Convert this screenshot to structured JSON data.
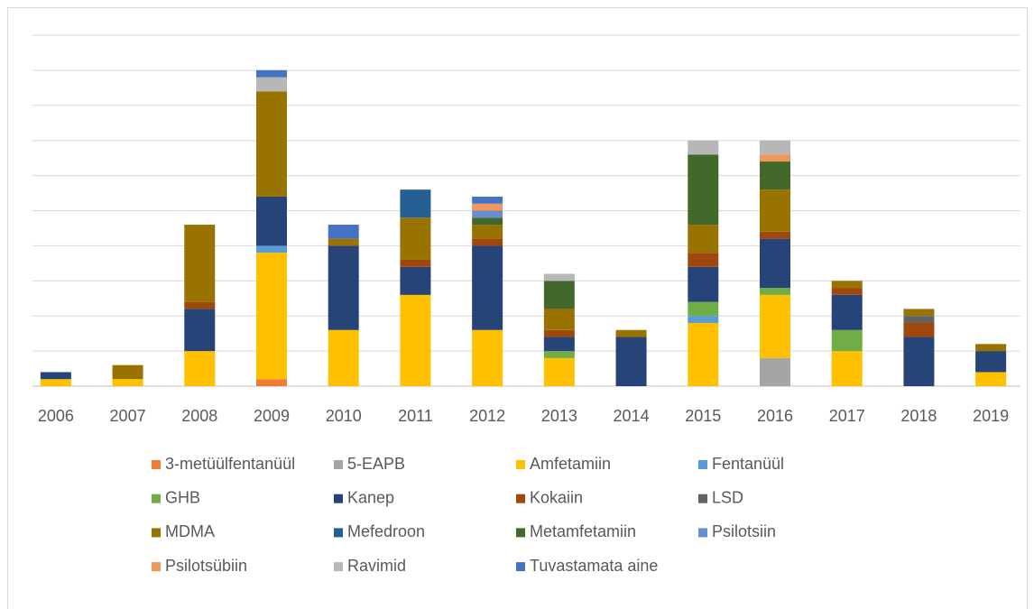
{
  "chart_data": {
    "type": "bar",
    "stacked": true,
    "grid": true,
    "categories": [
      "2006",
      "2007",
      "2008",
      "2009",
      "2010",
      "2011",
      "2012",
      "2013",
      "2014",
      "2015",
      "2016",
      "2017",
      "2018",
      "2019"
    ],
    "ylim": [
      0,
      50
    ],
    "yticks": [
      0,
      5,
      10,
      15,
      20,
      25,
      30,
      35,
      40,
      45,
      50
    ],
    "legend": "bottom",
    "series": [
      {
        "name": "3-metüülfentanüül",
        "color": "#ED7D31",
        "values": [
          0,
          0,
          0,
          1,
          0,
          0,
          0,
          0,
          0,
          0,
          0,
          0,
          0,
          0
        ]
      },
      {
        "name": "5-EAPB",
        "color": "#A5A5A5",
        "values": [
          0,
          0,
          0,
          0,
          0,
          0,
          0,
          0,
          0,
          0,
          4,
          0,
          0,
          0
        ]
      },
      {
        "name": "Amfetamiin",
        "color": "#FFC000",
        "values": [
          1,
          1,
          5,
          18,
          8,
          13,
          8,
          4,
          0,
          9,
          9,
          5,
          0,
          2
        ]
      },
      {
        "name": "Fentanüül",
        "color": "#5B9BD5",
        "values": [
          0,
          0,
          0,
          1,
          0,
          0,
          0,
          0,
          0,
          1,
          0,
          0,
          0,
          0
        ]
      },
      {
        "name": "GHB",
        "color": "#70AD47",
        "values": [
          0,
          0,
          0,
          0,
          0,
          0,
          0,
          1,
          0,
          2,
          1,
          3,
          0,
          0
        ]
      },
      {
        "name": "Kanep",
        "color": "#264478",
        "values": [
          1,
          0,
          6,
          7,
          12,
          4,
          12,
          2,
          7,
          5,
          7,
          5,
          7,
          3
        ]
      },
      {
        "name": "Kokaiin",
        "color": "#9E480E",
        "values": [
          0,
          0,
          1,
          0,
          0,
          1,
          1,
          1,
          0,
          2,
          1,
          1,
          2,
          0
        ]
      },
      {
        "name": "LSD",
        "color": "#636363",
        "values": [
          0,
          0,
          0,
          0,
          0,
          0,
          0,
          0,
          0,
          0,
          0,
          0,
          1,
          0
        ]
      },
      {
        "name": "MDMA",
        "color": "#997300",
        "values": [
          0,
          2,
          11,
          15,
          1,
          6,
          2,
          3,
          1,
          4,
          6,
          1,
          1,
          1
        ]
      },
      {
        "name": "Mefedroon",
        "color": "#255E91",
        "values": [
          0,
          0,
          0,
          0,
          0,
          4,
          0,
          0,
          0,
          0,
          0,
          0,
          0,
          0
        ]
      },
      {
        "name": "Metamfetamiin",
        "color": "#43682B",
        "values": [
          0,
          0,
          0,
          0,
          0,
          0,
          1,
          4,
          0,
          10,
          4,
          0,
          0,
          0
        ]
      },
      {
        "name": "Psilotsiin",
        "color": "#698ED0",
        "values": [
          0,
          0,
          0,
          0,
          0,
          0,
          1,
          0,
          0,
          0,
          0,
          0,
          0,
          0
        ]
      },
      {
        "name": "Psilotsübiin",
        "color": "#F1975A",
        "values": [
          0,
          0,
          0,
          0,
          0,
          0,
          1,
          0,
          0,
          0,
          1,
          0,
          0,
          0
        ]
      },
      {
        "name": "Ravimid",
        "color": "#B7B7B7",
        "values": [
          0,
          0,
          0,
          2,
          0,
          0,
          0,
          1,
          0,
          2,
          2,
          0,
          0,
          0
        ]
      },
      {
        "name": "Tuvastamata aine",
        "color": "#4472C4",
        "values": [
          0,
          0,
          0,
          1,
          2,
          0,
          1,
          0,
          0,
          0,
          0,
          0,
          0,
          0
        ]
      }
    ]
  }
}
